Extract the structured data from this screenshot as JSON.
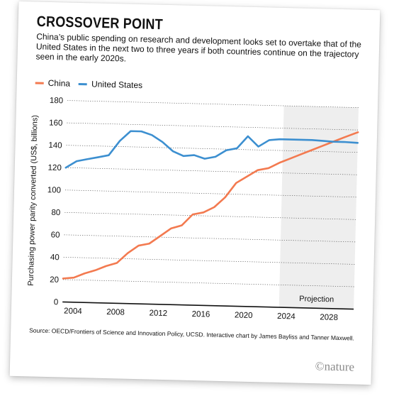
{
  "header": {
    "title": "CROSSOVER POINT",
    "subtitle": "China’s public spending on research and development looks set to overtake that of the United States in the next two to three years if both countries continue on the trajectory seen in the early 2020s."
  },
  "footer": {
    "source": "Source: OECD/Frontiers of Science and Innovation Policy, UCSD. Interactive chart by James Bayliss and Tanner Maxwell.",
    "logo_text": "©nature"
  },
  "chart_data": {
    "type": "line",
    "title": "CROSSOVER POINT",
    "xlabel": "",
    "ylabel": "Purchasing power parity converted (US$, billions)",
    "xlim": [
      2003,
      2030.3
    ],
    "ylim": [
      0,
      180
    ],
    "xticks": [
      2004,
      2008,
      2012,
      2016,
      2020,
      2024,
      2028
    ],
    "yticks": [
      0,
      20,
      40,
      60,
      80,
      100,
      120,
      140,
      160,
      180
    ],
    "grid": true,
    "legend_position": "top-left",
    "shaded_region": {
      "label": "Projection",
      "x_start": 2023.3,
      "x_end": 2030.3,
      "color": "#eeeeee"
    },
    "series": [
      {
        "name": "China",
        "color": "#f37a50",
        "x": [
          2003,
          2004,
          2005,
          2006,
          2007,
          2008,
          2009,
          2010,
          2011,
          2012,
          2013,
          2014,
          2015,
          2016,
          2017,
          2018,
          2019,
          2020,
          2021,
          2022,
          2023,
          2024,
          2025,
          2026,
          2027,
          2028,
          2029,
          2030.3
        ],
        "y": [
          21,
          22,
          26,
          29,
          33,
          36,
          45,
          52,
          54,
          61,
          68,
          71,
          81,
          83,
          88,
          97,
          110,
          116,
          122,
          124,
          129,
          133,
          137,
          141,
          145,
          149,
          153,
          158
        ]
      },
      {
        "name": "United States",
        "color": "#3c8fd0",
        "x": [
          2003,
          2004,
          2005,
          2006,
          2007,
          2008,
          2009,
          2010,
          2011,
          2012,
          2013,
          2014,
          2015,
          2016,
          2017,
          2018,
          2019,
          2020,
          2021,
          2022,
          2023,
          2024,
          2025,
          2026,
          2027,
          2028,
          2029,
          2030.3
        ],
        "y": [
          120,
          126,
          128,
          130,
          132,
          145,
          154,
          154,
          151,
          145,
          137,
          133,
          134,
          131,
          133,
          139,
          141,
          152,
          143,
          149,
          150,
          150,
          150,
          150,
          149.5,
          149,
          149,
          148.5
        ]
      }
    ]
  }
}
